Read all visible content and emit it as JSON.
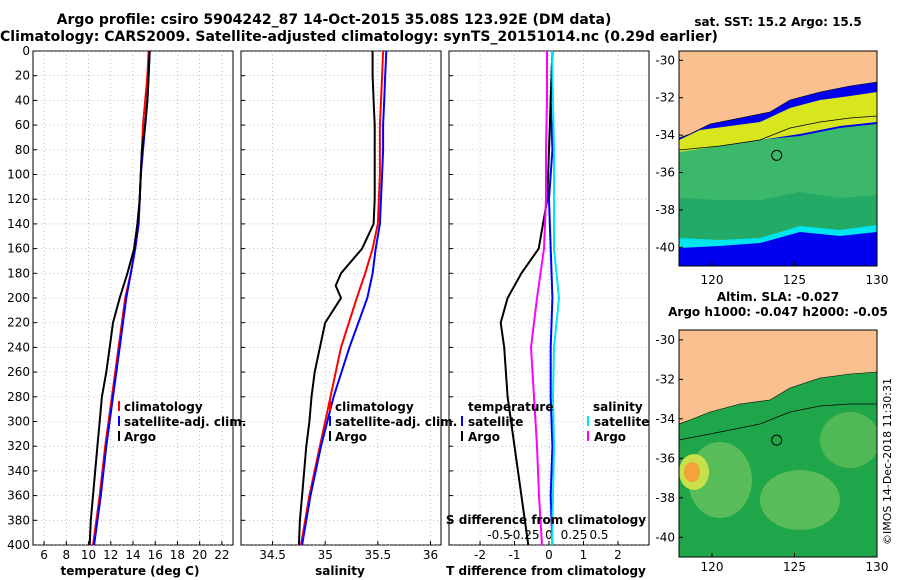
{
  "header": {
    "title_line1": "Argo profile: csiro 5904242_87 14-Oct-2015 35.08S 123.92E (DM data)",
    "title_line2": "Climatology: CARS2009. Satellite-adjusted climatology: synTS_20151014.nc (0.29d earlier)"
  },
  "colors": {
    "climatology": "#ff0000",
    "satellite": "#0000ff",
    "argo": "#000000",
    "s_satellite": "#00e5ff",
    "s_argo": "#ff00ff",
    "land": "#fbc08f",
    "deep_blue": "#0000ee"
  },
  "chart_data": [
    {
      "type": "line",
      "name": "temperature-panel",
      "xlabel": "temperature (deg C)",
      "ylabel": "",
      "xlim": [
        5,
        23
      ],
      "ylim": [
        400,
        0
      ],
      "xticks": [
        6,
        8,
        10,
        12,
        14,
        16,
        18,
        20,
        22
      ],
      "yticks": [
        0,
        20,
        40,
        60,
        80,
        100,
        120,
        140,
        160,
        180,
        200,
        220,
        240,
        260,
        280,
        300,
        320,
        340,
        360,
        380,
        400
      ],
      "legend": {
        "position": "lower-right",
        "entries": [
          "climatology",
          "satellite-adj. clim.",
          "Argo"
        ]
      },
      "series": [
        {
          "name": "climatology",
          "color": "#ff0000",
          "depth": [
            0,
            20,
            40,
            60,
            80,
            100,
            120,
            140,
            160,
            180,
            200,
            240,
            280,
            320,
            360,
            400
          ],
          "values": [
            15.4,
            15.3,
            15.1,
            14.9,
            14.8,
            14.7,
            14.6,
            14.5,
            14.2,
            13.8,
            13.3,
            12.7,
            12.1,
            11.5,
            11.0,
            10.4
          ]
        },
        {
          "name": "satellite-adj. clim.",
          "color": "#0000ff",
          "depth": [
            0,
            20,
            40,
            60,
            80,
            100,
            120,
            140,
            160,
            180,
            200,
            240,
            280,
            320,
            360,
            400
          ],
          "values": [
            15.5,
            15.4,
            15.3,
            15.1,
            14.9,
            14.7,
            14.6,
            14.5,
            14.2,
            13.8,
            13.4,
            12.8,
            12.2,
            11.6,
            11.1,
            10.5
          ]
        },
        {
          "name": "Argo",
          "color": "#000000",
          "depth": [
            0,
            20,
            40,
            60,
            80,
            100,
            120,
            140,
            160,
            180,
            200,
            220,
            240,
            260,
            280,
            300,
            320,
            340,
            360,
            380,
            400
          ],
          "values": [
            15.5,
            15.4,
            15.3,
            15.1,
            14.8,
            14.7,
            14.6,
            14.4,
            14.1,
            13.5,
            12.8,
            12.2,
            11.9,
            11.6,
            11.2,
            11.0,
            10.8,
            10.6,
            10.4,
            10.2,
            10.1
          ]
        }
      ]
    },
    {
      "type": "line",
      "name": "salinity-panel",
      "xlabel": "salinity",
      "xlim": [
        34.2,
        36.1
      ],
      "ylim": [
        400,
        0
      ],
      "xticks": [
        34.5,
        35,
        35.5,
        36
      ],
      "xtick_labels": [
        "34.5",
        "35",
        "35.5",
        "36"
      ],
      "legend": {
        "position": "lower-right",
        "entries": [
          "climatology",
          "satellite-adj. clim.",
          "Argo"
        ]
      },
      "series": [
        {
          "name": "climatology",
          "color": "#ff0000",
          "depth": [
            0,
            20,
            40,
            60,
            80,
            100,
            120,
            140,
            160,
            180,
            200,
            240,
            280,
            320,
            360,
            400
          ],
          "values": [
            35.55,
            35.54,
            35.53,
            35.52,
            35.52,
            35.52,
            35.51,
            35.5,
            35.45,
            35.38,
            35.3,
            35.15,
            35.05,
            34.95,
            34.85,
            34.77
          ]
        },
        {
          "name": "satellite-adj. clim.",
          "color": "#0000ff",
          "depth": [
            0,
            20,
            40,
            60,
            80,
            100,
            120,
            140,
            160,
            180,
            200,
            240,
            280,
            320,
            360,
            400
          ],
          "values": [
            35.58,
            35.57,
            35.56,
            35.55,
            35.55,
            35.54,
            35.53,
            35.52,
            35.48,
            35.45,
            35.4,
            35.23,
            35.08,
            34.96,
            34.86,
            34.78
          ]
        },
        {
          "name": "Argo",
          "color": "#000000",
          "depth": [
            0,
            20,
            40,
            60,
            80,
            100,
            120,
            140,
            160,
            180,
            190,
            200,
            220,
            240,
            260,
            280,
            300,
            320,
            340,
            360,
            380,
            400
          ],
          "values": [
            35.45,
            35.45,
            35.46,
            35.47,
            35.47,
            35.47,
            35.47,
            35.46,
            35.35,
            35.15,
            35.1,
            35.15,
            35.0,
            34.95,
            34.9,
            34.87,
            34.85,
            34.82,
            34.8,
            34.78,
            34.76,
            34.75
          ]
        }
      ]
    },
    {
      "type": "line",
      "name": "difference-panel",
      "xlabel": "T difference from climatology",
      "xlim": [
        -2.9,
        2.9
      ],
      "ylim": [
        400,
        0
      ],
      "xticks": [
        -2,
        -1,
        0,
        1,
        2
      ],
      "top_axis_label": "S difference from climatology",
      "s_ticks": [
        -0.5,
        -0.25,
        0,
        0.25,
        0.5
      ],
      "s_tick_labels": [
        "-0.5",
        "-0.25",
        "0",
        "0.25",
        "0.5"
      ],
      "legend": {
        "position": "lower-center",
        "left_header": "temperature",
        "right_header": "salinity",
        "left_entries": [
          "satellite",
          "Argo"
        ],
        "right_entries": [
          "satellite",
          "Argo"
        ]
      },
      "series": [
        {
          "name": "T satellite",
          "color": "#0000ff",
          "depth": [
            0,
            40,
            80,
            120,
            160,
            200,
            240,
            280,
            320,
            360,
            400
          ],
          "values": [
            0.1,
            0.05,
            0.1,
            0.0,
            0.05,
            0.1,
            0.05,
            0.05,
            0.1,
            0.05,
            0.1
          ]
        },
        {
          "name": "T Argo",
          "color": "#000000",
          "depth": [
            0,
            40,
            80,
            120,
            160,
            180,
            200,
            220,
            240,
            280,
            320,
            360,
            400
          ],
          "values": [
            0.1,
            0.05,
            0.0,
            -0.05,
            -0.3,
            -0.8,
            -1.2,
            -1.4,
            -1.3,
            -1.2,
            -1.0,
            -0.8,
            -0.6
          ]
        },
        {
          "name": "S satellite",
          "color": "#00e5ff",
          "depth": [
            0,
            40,
            80,
            120,
            160,
            200,
            240,
            280,
            320,
            360,
            400
          ],
          "values": [
            0.03,
            0.04,
            0.05,
            0.05,
            0.05,
            0.1,
            0.05,
            0.04,
            0.05,
            0.04,
            0.03
          ]
        },
        {
          "name": "S Argo",
          "color": "#ff00ff",
          "depth": [
            0,
            40,
            80,
            120,
            160,
            200,
            240,
            280,
            320,
            360,
            400
          ],
          "values": [
            -0.02,
            -0.02,
            -0.03,
            -0.03,
            -0.05,
            -0.12,
            -0.18,
            -0.15,
            -0.12,
            -0.1,
            -0.07
          ]
        }
      ]
    },
    {
      "type": "heatmap",
      "name": "sst-map",
      "title": "sat. SST: 15.2 Argo: 15.5",
      "xlim": [
        118,
        130
      ],
      "ylim": [
        -41,
        -29.5
      ],
      "xticks": [
        120,
        125,
        130
      ],
      "yticks": [
        -30,
        -32,
        -34,
        -36,
        -38,
        -40
      ],
      "marker": {
        "lon": 123.92,
        "lat": -35.08
      }
    },
    {
      "type": "heatmap",
      "name": "sla-map",
      "title_line1": "Altim. SLA: -0.027",
      "title_line2": "Argo h1000: -0.047 h2000: -0.05",
      "xlim": [
        118,
        130
      ],
      "ylim": [
        -41,
        -29.5
      ],
      "xticks": [
        120,
        125,
        130
      ],
      "yticks": [
        -30,
        -32,
        -34,
        -36,
        -38,
        -40
      ],
      "marker": {
        "lon": 123.92,
        "lat": -35.08
      }
    }
  ],
  "watermark": "©IMOS 14-Dec-2018 11:30:31"
}
